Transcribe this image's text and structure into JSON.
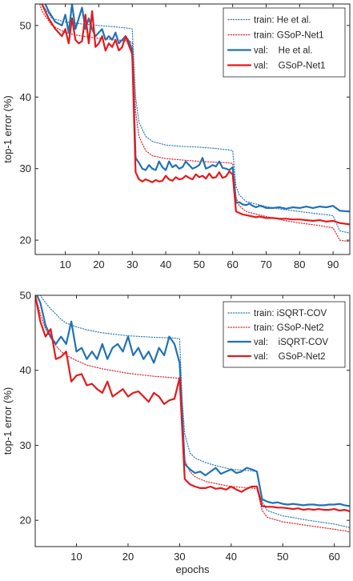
{
  "figure": {
    "background": "#ffffff"
  },
  "chart_data": [
    {
      "type": "line",
      "ylabel": "top-1 error (%)",
      "xlabel": "",
      "xlim": [
        1,
        95
      ],
      "ylim": [
        18,
        53
      ],
      "xticks": [
        10,
        20,
        30,
        40,
        50,
        60,
        70,
        80,
        90
      ],
      "yticks": [
        20,
        30,
        40,
        50
      ],
      "grid": false,
      "legend_position": "top-right",
      "series": [
        {
          "name": "train: He et al.",
          "color": "#2e7dbf",
          "style": "dotted",
          "x": [
            1,
            3,
            6,
            10,
            15,
            20,
            25,
            29,
            30,
            31,
            32,
            34,
            36,
            40,
            45,
            50,
            55,
            59,
            60,
            61,
            62,
            64,
            70,
            75,
            80,
            85,
            89,
            90,
            92,
            95
          ],
          "y": [
            56,
            53,
            51,
            50.5,
            50.2,
            50,
            49.8,
            49.6,
            49.5,
            40,
            36.5,
            34.5,
            33.8,
            33.3,
            33.1,
            33,
            32.8,
            32.6,
            32.5,
            27.5,
            26.3,
            25.4,
            24.7,
            24.3,
            24,
            23.7,
            23.5,
            23.4,
            21.3,
            21
          ]
        },
        {
          "name": "train: GSoP-Net1",
          "color": "#e0242a",
          "style": "dotted",
          "x": [
            1,
            3,
            6,
            10,
            15,
            20,
            25,
            29,
            30,
            31,
            32,
            34,
            36,
            40,
            45,
            50,
            55,
            59,
            60,
            61,
            62,
            64,
            70,
            75,
            80,
            85,
            89,
            90,
            92,
            95
          ],
          "y": [
            55,
            52,
            50,
            49,
            48.5,
            48.2,
            48,
            47.8,
            47.6,
            38,
            34.5,
            32.5,
            31.8,
            31.4,
            31.2,
            31,
            30.9,
            30.8,
            30.7,
            26,
            24.8,
            24,
            23.3,
            22.8,
            22.4,
            22.1,
            21.8,
            21.7,
            20,
            19.8
          ]
        },
        {
          "name": "val:    He et al.",
          "color": "#2172b5",
          "style": "solid",
          "x": [
            1,
            3,
            5,
            7,
            9,
            10,
            11,
            12,
            13,
            14,
            15,
            16,
            17,
            18,
            19,
            20,
            21,
            22,
            23,
            24,
            25,
            26,
            27,
            28,
            29,
            30,
            31,
            32,
            33,
            34,
            35,
            36,
            37,
            38,
            39,
            40,
            41,
            42,
            43,
            44,
            45,
            46,
            47,
            48,
            49,
            50,
            51,
            52,
            53,
            54,
            55,
            56,
            57,
            58,
            59,
            60,
            61,
            62,
            63,
            64,
            65,
            66,
            67,
            68,
            69,
            70,
            72,
            74,
            76,
            78,
            80,
            82,
            84,
            86,
            88,
            90,
            92,
            95
          ],
          "y": [
            56,
            54,
            52,
            50.5,
            50,
            51.5,
            49,
            53,
            49.5,
            51,
            52.5,
            49.5,
            51,
            49.5,
            48.5,
            49,
            49.5,
            48,
            48.5,
            48,
            49,
            47.5,
            48,
            48.5,
            47.8,
            46.5,
            31.5,
            30.8,
            30,
            29.8,
            30.5,
            30,
            29.8,
            31,
            30.2,
            29.8,
            31,
            30.2,
            30.5,
            30,
            30.2,
            31,
            30.5,
            30,
            30.2,
            30.5,
            31.5,
            30,
            30.2,
            30.5,
            30.3,
            31,
            30.1,
            30,
            29.8,
            30.2,
            25.2,
            25.3,
            25,
            24.9,
            25.1,
            24.8,
            24.6,
            24.8,
            24.7,
            24.5,
            24.5,
            24.6,
            24.4,
            24.6,
            24.5,
            24.7,
            24.5,
            24.7,
            24.6,
            24.8,
            24.1,
            24
          ]
        },
        {
          "name": "val:    GSoP-Net1",
          "color": "#e31a1c",
          "style": "solid",
          "x": [
            1,
            3,
            5,
            7,
            9,
            10,
            11,
            12,
            13,
            14,
            15,
            16,
            17,
            18,
            19,
            20,
            21,
            22,
            23,
            24,
            25,
            26,
            27,
            28,
            29,
            30,
            31,
            32,
            33,
            34,
            35,
            36,
            37,
            38,
            39,
            40,
            41,
            42,
            43,
            44,
            45,
            46,
            47,
            48,
            49,
            50,
            51,
            52,
            53,
            54,
            55,
            56,
            57,
            58,
            59,
            60,
            61,
            62,
            63,
            64,
            65,
            66,
            67,
            68,
            69,
            70,
            72,
            74,
            76,
            78,
            80,
            82,
            84,
            86,
            88,
            90,
            92,
            95
          ],
          "y": [
            55,
            53,
            51,
            49.5,
            48.5,
            49.5,
            47.5,
            51,
            48,
            47.5,
            47.8,
            51.5,
            47.5,
            52,
            47,
            47.5,
            48.5,
            46.5,
            47.5,
            47,
            48,
            46.5,
            47,
            48.5,
            47.2,
            46,
            29.5,
            28.5,
            28.2,
            28.5,
            28.3,
            28.1,
            28.4,
            28.2,
            28.3,
            29,
            28.5,
            28.3,
            28.8,
            28.5,
            28.6,
            29,
            28.7,
            28.5,
            29.2,
            28.8,
            29,
            28.6,
            29.3,
            28.7,
            28.8,
            29.5,
            28.7,
            28.9,
            29.6,
            29.2,
            24,
            23.8,
            23.6,
            23.5,
            23.4,
            23.3,
            23.2,
            23.3,
            23.2,
            23.1,
            23.1,
            23,
            23,
            22.9,
            22.9,
            22.8,
            22.7,
            22.8,
            22.6,
            22.7,
            22.4,
            22.2
          ]
        }
      ]
    },
    {
      "type": "line",
      "ylabel": "top-1 error (%)",
      "xlabel": "epochs",
      "xlim": [
        2,
        63
      ],
      "ylim": [
        16.5,
        50
      ],
      "xticks": [
        10,
        20,
        30,
        40,
        50,
        60
      ],
      "yticks": [
        20,
        30,
        40,
        50
      ],
      "grid": false,
      "legend_position": "top-right",
      "series": [
        {
          "name": "train: iSQRT-COV",
          "color": "#2e7dbf",
          "style": "dotted",
          "x": [
            2,
            3,
            4,
            5,
            6,
            7,
            8,
            10,
            12,
            15,
            20,
            25,
            29,
            30,
            30.5,
            31,
            32,
            33,
            35,
            37,
            40,
            44,
            45,
            46,
            47,
            50,
            55,
            60,
            62,
            63
          ],
          "y": [
            52,
            50,
            49,
            48.2,
            47.5,
            46.8,
            46.3,
            45.8,
            45.4,
            45,
            44.6,
            44.4,
            44.3,
            44.2,
            36,
            31.5,
            29,
            28.3,
            27.7,
            27.3,
            26.8,
            26.6,
            26.5,
            22.5,
            21.3,
            20.6,
            20,
            19.5,
            19.2,
            19
          ]
        },
        {
          "name": "train: GSoP-Net2",
          "color": "#e0242a",
          "style": "dotted",
          "x": [
            2,
            3,
            4,
            5,
            6,
            7,
            8,
            10,
            12,
            15,
            20,
            25,
            29,
            30,
            30.5,
            31,
            32,
            33,
            35,
            37,
            40,
            44,
            45,
            46,
            47,
            50,
            55,
            60,
            62,
            63
          ],
          "y": [
            50,
            47.5,
            45.5,
            44.3,
            43.3,
            42.5,
            42,
            41.3,
            40.7,
            40.2,
            39.6,
            39.2,
            39,
            38.9,
            32,
            28,
            26.5,
            25.8,
            25.2,
            24.9,
            24.5,
            24.3,
            24.2,
            21.3,
            20.4,
            19.8,
            19.3,
            18.8,
            18.6,
            18.4
          ]
        },
        {
          "name": "val:    iSQRT-COV",
          "color": "#2172b5",
          "style": "solid",
          "x": [
            2,
            3,
            4,
            5,
            6,
            7,
            8,
            9,
            10,
            11,
            12,
            13,
            14,
            15,
            16,
            17,
            18,
            19,
            20,
            21,
            22,
            23,
            24,
            25,
            26,
            27,
            28,
            29,
            30,
            31,
            32,
            33,
            34,
            35,
            36,
            37,
            38,
            39,
            40,
            41,
            42,
            43,
            44,
            45,
            46,
            47,
            48,
            49,
            50,
            51,
            52,
            53,
            54,
            55,
            56,
            57,
            58,
            59,
            60,
            61,
            62,
            63
          ],
          "y": [
            50.5,
            49,
            46,
            44.5,
            43.5,
            44.5,
            43.5,
            46.5,
            42.5,
            43,
            41.5,
            42.5,
            41.5,
            43.5,
            41.5,
            43,
            43.5,
            42.5,
            44.5,
            42,
            43,
            41.5,
            42.5,
            41,
            43,
            42,
            44.5,
            43.5,
            41,
            27.5,
            26.8,
            26.3,
            26.5,
            26,
            26.5,
            27,
            26.2,
            26.5,
            26.8,
            26.3,
            26.5,
            27,
            26.8,
            26.5,
            22.8,
            22.5,
            22.3,
            22.4,
            22.2,
            22.1,
            22.2,
            22.1,
            22,
            22.1,
            22.1,
            22,
            22,
            22.1,
            22.1,
            22.2,
            22,
            21.9
          ]
        },
        {
          "name": "val:    GSoP-Net2",
          "color": "#e31a1c",
          "style": "solid",
          "x": [
            2,
            3,
            4,
            5,
            6,
            7,
            8,
            9,
            10,
            11,
            12,
            13,
            14,
            15,
            16,
            17,
            18,
            19,
            20,
            21,
            22,
            23,
            24,
            25,
            26,
            27,
            28,
            29,
            30,
            31,
            32,
            33,
            34,
            35,
            36,
            37,
            38,
            39,
            40,
            41,
            42,
            43,
            44,
            45,
            46,
            47,
            48,
            49,
            50,
            51,
            52,
            53,
            54,
            55,
            56,
            57,
            58,
            59,
            60,
            61,
            62,
            63
          ],
          "y": [
            50,
            46.5,
            44.5,
            45.5,
            41.5,
            41.8,
            42.5,
            38.5,
            39.3,
            39.5,
            38,
            38.2,
            37.5,
            37,
            38.5,
            36.5,
            37,
            37.5,
            36.5,
            37,
            37.2,
            36.5,
            35.8,
            37,
            36.5,
            35.5,
            36,
            36.2,
            39,
            25.5,
            24.8,
            24.5,
            24.3,
            24.3,
            24.5,
            24.2,
            24.3,
            24.1,
            24.5,
            24.1,
            23.8,
            24.2,
            24.5,
            24.5,
            21.9,
            21.8,
            21.8,
            21.7,
            21.7,
            21.6,
            21.5,
            21.6,
            21.4,
            21.5,
            21.4,
            21.5,
            21.4,
            21.4,
            21.5,
            21.3,
            21.4,
            21.2
          ]
        }
      ]
    }
  ]
}
